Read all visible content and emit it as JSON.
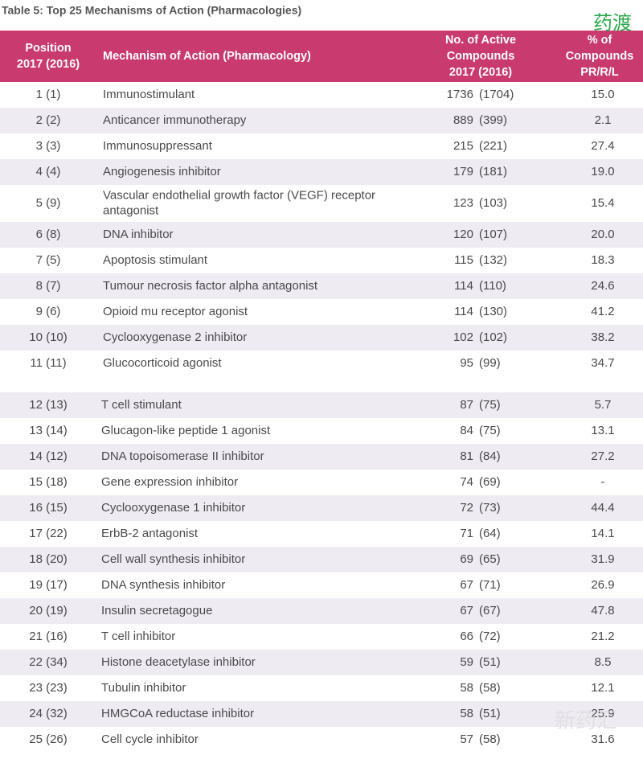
{
  "title": "Table 5: Top 25 Mechanisms of Action (Pharmacologies)",
  "watermarks": [
    "药渡",
    "新药汇"
  ],
  "table": {
    "header": [
      [
        "Position",
        "2017 (2016)"
      ],
      [
        "Mechanism of Action (Pharmacology)"
      ],
      [
        "No. of Active",
        "Compounds",
        "2017 (2016)"
      ],
      [
        "% of",
        "Compounds",
        "PR/R/L"
      ]
    ],
    "rows": [
      [
        "1 (1)",
        [
          "Immunostimulant"
        ],
        "1736",
        "(1704)",
        "15.0"
      ],
      [
        "2 (2)",
        [
          "Anticancer immunotherapy"
        ],
        "889",
        "(399)",
        "2.1"
      ],
      [
        "3 (3)",
        [
          "Immunosuppressant"
        ],
        "215",
        "(221)",
        "27.4"
      ],
      [
        "4 (4)",
        [
          "Angiogenesis inhibitor"
        ],
        "179",
        "(181)",
        "19.0"
      ],
      [
        "5 (9)",
        [
          "Vascular endothelial growth factor (VEGF) receptor",
          "antagonist"
        ],
        "123",
        "(103)",
        "15.4"
      ],
      [
        "6 (8)",
        [
          "DNA inhibitor"
        ],
        "120",
        "(107)",
        "20.0"
      ],
      [
        "7 (5)",
        [
          "Apoptosis stimulant"
        ],
        "115",
        "(132)",
        "18.3"
      ],
      [
        "8 (7)",
        [
          "Tumour necrosis factor alpha antagonist"
        ],
        "114",
        "(110)",
        "24.6"
      ],
      [
        "9 (6)",
        [
          "Opioid mu receptor agonist"
        ],
        "114",
        "(130)",
        "41.2"
      ],
      [
        "10 (10)",
        [
          "Cyclooxygenase 2 inhibitor"
        ],
        "102",
        "(102)",
        "38.2"
      ],
      [
        "11 (11)",
        [
          "Glucocorticoid agonist"
        ],
        "95",
        "(99)",
        "34.7"
      ],
      [
        "12 (13)",
        [
          "T cell stimulant"
        ],
        "87",
        "(75)",
        "5.7"
      ],
      [
        "13 (14)",
        [
          "Glucagon-like peptide 1 agonist"
        ],
        "84",
        "(75)",
        "13.1"
      ],
      [
        "14 (12)",
        [
          "DNA topoisomerase II inhibitor"
        ],
        "81",
        "(84)",
        "27.2"
      ],
      [
        "15 (18)",
        [
          "Gene expression inhibitor"
        ],
        "74",
        "(69)",
        "-"
      ],
      [
        "16 (15)",
        [
          "Cyclooxygenase 1 inhibitor"
        ],
        "72",
        "(73)",
        "44.4"
      ],
      [
        "17 (22)",
        [
          "ErbB-2 antagonist"
        ],
        "71",
        "(64)",
        "14.1"
      ],
      [
        "18 (20)",
        [
          "Cell wall synthesis inhibitor"
        ],
        "69",
        "(65)",
        "31.9"
      ],
      [
        "19 (17)",
        [
          "DNA synthesis inhibitor"
        ],
        "67",
        "(71)",
        "26.9"
      ],
      [
        "20 (19)",
        [
          "Insulin secretagogue"
        ],
        "67",
        "(67)",
        "47.8"
      ],
      [
        "21 (16)",
        [
          "T cell inhibitor"
        ],
        "66",
        "(72)",
        "21.2"
      ],
      [
        "22 (34)",
        [
          "Histone deacetylase inhibitor"
        ],
        "59",
        "(51)",
        "8.5"
      ],
      [
        "23 (23)",
        [
          "Tubulin inhibitor"
        ],
        "58",
        "(58)",
        "12.1"
      ],
      [
        "24 (32)",
        [
          "HMGCoA reductase inhibitor"
        ],
        "58",
        "(51)",
        "25.9"
      ],
      [
        "25 (26)",
        [
          "Cell cycle inhibitor"
        ],
        "57",
        "(58)",
        "31.6"
      ]
    ]
  }
}
